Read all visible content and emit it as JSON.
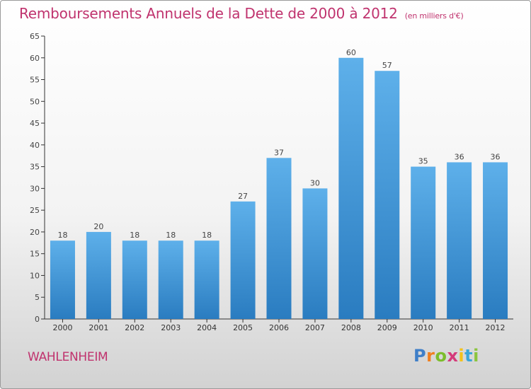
{
  "title": "Remboursements Annuels de la Dette de 2000 à 2012",
  "unit_note": "(en milliers d'€)",
  "city": "WAHLENHEIM",
  "logo": {
    "letters": [
      "P",
      "r",
      "o",
      "x",
      "i",
      "t",
      "i"
    ],
    "colors": [
      "#3f7fc8",
      "#f07f1e",
      "#7cbd2c",
      "#d43a7a",
      "#f3c21b",
      "#3aa6d8",
      "#8bc53f"
    ]
  },
  "colors": {
    "title": "#c0336e",
    "bar_top": "#5eb0ea",
    "bar_bottom": "#2a7cc0"
  },
  "chart_data": {
    "type": "bar",
    "categories": [
      "2000",
      "2001",
      "2002",
      "2003",
      "2004",
      "2005",
      "2006",
      "2007",
      "2008",
      "2009",
      "2010",
      "2011",
      "2012"
    ],
    "values": [
      18,
      20,
      18,
      18,
      18,
      27,
      37,
      30,
      60,
      57,
      35,
      36,
      36
    ],
    "title": "Remboursements Annuels de la Dette de 2000 à 2012",
    "xlabel": "",
    "ylabel": "",
    "ylim": [
      0,
      65
    ],
    "yticks": [
      0,
      5,
      10,
      15,
      20,
      25,
      30,
      35,
      40,
      45,
      50,
      55,
      60,
      65
    ],
    "grid": false,
    "data_labels": true
  }
}
